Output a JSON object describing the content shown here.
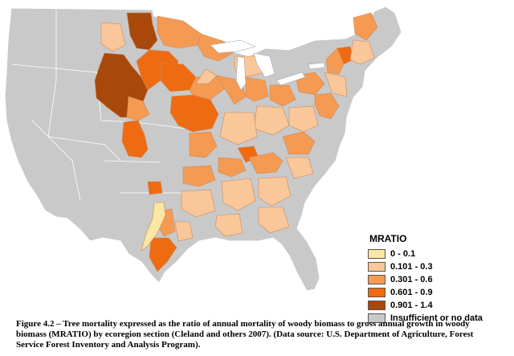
{
  "legend": {
    "title": "MRATIO",
    "items": [
      {
        "label": "0 - 0.1",
        "color": "#fbe6a2"
      },
      {
        "label": "0.101 - 0.3",
        "color": "#f9c79a"
      },
      {
        "label": "0.301 - 0.6",
        "color": "#f59a52"
      },
      {
        "label": "0.601 - 0.9",
        "color": "#ee6b12"
      },
      {
        "label": "0.901 - 1.4",
        "color": "#a9480b"
      },
      {
        "label": "Insufficient or no data",
        "color": "#c9c9c9"
      }
    ]
  },
  "caption": "Figure 4.2 – Tree mortality expressed as the ratio of annual mortality of woody biomass to gross annual growth in woody biomass (MRATIO) by ecoregion section (Cleland and others 2007). (Data source: U.S. Department of Agriculture, Forest Service Forest Inventory and Analysis Program).",
  "colors": {
    "no_data": "#c9c9c9",
    "border": "#ffffff",
    "water": "#ffffff"
  }
}
